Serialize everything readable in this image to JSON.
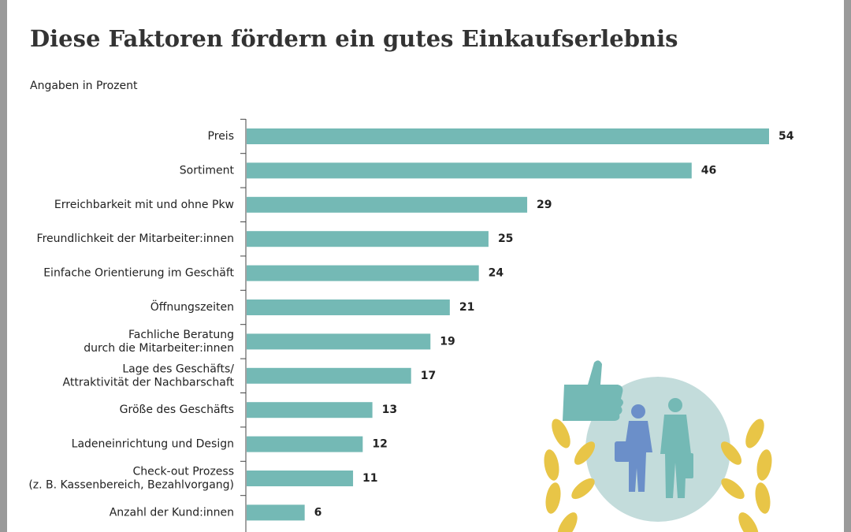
{
  "chart_data": {
    "type": "bar",
    "orientation": "horizontal",
    "title": "Diese Faktoren fördern ein gutes Einkaufserlebnis",
    "subtitle": "Angaben in Prozent",
    "categories": [
      [
        "Preis"
      ],
      [
        "Sortiment"
      ],
      [
        "Erreichbarkeit mit und ohne Pkw"
      ],
      [
        "Freundlichkeit der Mitarbeiter:innen"
      ],
      [
        "Einfache Orientierung im Geschäft"
      ],
      [
        "Öffnungszeiten"
      ],
      [
        "Fachliche Beratung",
        "durch die Mitarbeiter:innen"
      ],
      [
        "Lage des Geschäfts/",
        "Attraktivität der Nachbarschaft"
      ],
      [
        "Größe des Geschäfts"
      ],
      [
        "Ladeneinrichtung und Design"
      ],
      [
        "Check-out Prozess",
        "(z. B. Kassenbereich, Bezahlvorgang)"
      ],
      [
        "Anzahl der Kund:innen"
      ]
    ],
    "values": [
      54,
      46,
      29,
      25,
      24,
      21,
      19,
      17,
      13,
      12,
      11,
      6
    ],
    "color": "#74b9b5"
  }
}
